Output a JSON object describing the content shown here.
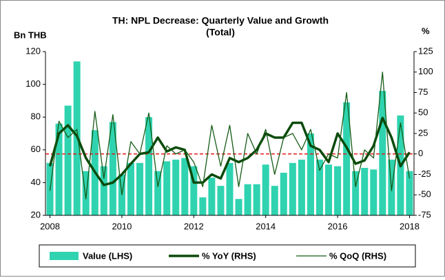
{
  "chart_data": {
    "type": "bar_line_combo",
    "title": [
      "TH: NPL Decrease: Quarterly Value and Growth",
      "(Total)"
    ],
    "y_label": "Bn THB",
    "y2_label": "%",
    "x": [
      2008,
      2008.25,
      2008.5,
      2008.75,
      2009,
      2009.25,
      2009.5,
      2009.75,
      2010,
      2010.25,
      2010.5,
      2010.75,
      2011,
      2011.25,
      2011.5,
      2011.75,
      2012,
      2012.25,
      2012.5,
      2012.75,
      2013,
      2013.25,
      2013.5,
      2013.75,
      2014,
      2014.25,
      2014.5,
      2014.75,
      2015,
      2015.25,
      2015.5,
      2015.75,
      2016,
      2016.25,
      2016.5,
      2016.75,
      2017,
      2017.25,
      2017.5,
      2017.75,
      2018
    ],
    "series": [
      {
        "name": "Value (LHS)",
        "type": "bar",
        "axis": "y",
        "color": "#2fd3b0",
        "values": [
          52,
          76,
          87,
          114,
          47,
          72,
          50,
          77,
          45,
          52,
          52,
          80,
          47,
          53,
          54,
          55,
          50,
          31,
          43,
          38,
          52,
          30,
          39,
          39,
          51,
          38,
          46,
          52,
          54,
          70,
          54,
          51,
          50,
          89,
          47,
          49,
          48,
          96,
          54,
          81,
          47
        ]
      },
      {
        "name": "% YoY (RHS)",
        "type": "line",
        "axis": "y2",
        "color": "#0b4a0b",
        "width": 3.5,
        "values": [
          -15,
          25,
          35,
          22,
          -5,
          -22,
          -38,
          -35,
          -25,
          -12,
          0,
          2,
          20,
          3,
          8,
          5,
          -35,
          -35,
          -25,
          -30,
          -5,
          -10,
          -5,
          5,
          25,
          20,
          20,
          38,
          38,
          10,
          5,
          -10,
          25,
          8,
          -12,
          -8,
          10,
          44,
          20,
          -15,
          2
        ]
      },
      {
        "name": "% QoQ (RHS)",
        "type": "line",
        "axis": "y2",
        "color": "#145a14",
        "width": 1.3,
        "values": [
          -45,
          40,
          20,
          30,
          -55,
          52,
          -30,
          48,
          -50,
          15,
          0,
          50,
          -40,
          10,
          0,
          5,
          -10,
          -40,
          35,
          -15,
          35,
          -40,
          25,
          0,
          30,
          -25,
          20,
          25,
          5,
          30,
          -20,
          0,
          -5,
          75,
          -40,
          5,
          -5,
          100,
          -45,
          38,
          -30
        ]
      }
    ],
    "zero_line": {
      "axis": "y2",
      "value": 0,
      "color": "#e41a1c",
      "dashed": true
    },
    "xlim": [
      2007.875,
      2018.125
    ],
    "xticks": [
      2008,
      2010,
      2012,
      2014,
      2016,
      2018
    ],
    "ylim": [
      20,
      120
    ],
    "yticks": [
      20,
      40,
      60,
      80,
      100,
      120
    ],
    "y2lim": [
      -75,
      125
    ],
    "y2ticks": [
      -75,
      -50,
      -25,
      0,
      25,
      50,
      75,
      100,
      125
    ],
    "legend": "bottom"
  }
}
